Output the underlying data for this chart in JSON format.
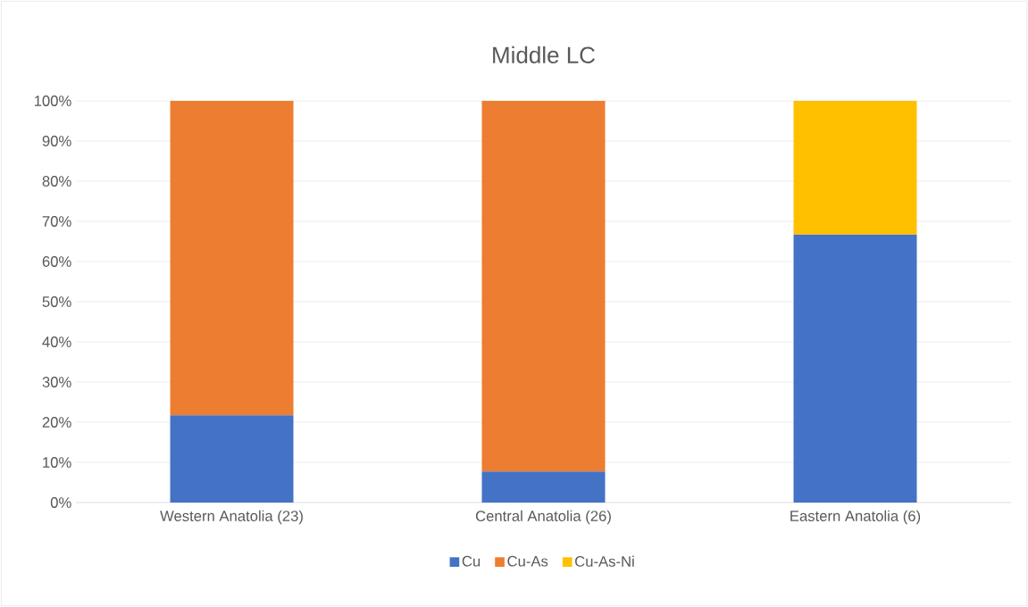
{
  "chart_data": {
    "type": "bar",
    "title": "Middle LC",
    "stacked": true,
    "categories": [
      "Western Anatolia (23)",
      "Central Anatolia (26)",
      "Eastern Anatolia (6)"
    ],
    "series": [
      {
        "name": "Cu",
        "color": "#4472c4",
        "values": [
          21.7,
          7.7,
          66.7
        ]
      },
      {
        "name": "Cu-As",
        "color": "#ed7d31",
        "values": [
          78.3,
          92.3,
          0
        ]
      },
      {
        "name": "Cu-As-Ni",
        "color": "#ffc000",
        "values": [
          0,
          0,
          33.3
        ]
      }
    ],
    "ylim": [
      0,
      100
    ],
    "yticks": [
      {
        "value": 0,
        "label": "0%"
      },
      {
        "value": 10,
        "label": "10%"
      },
      {
        "value": 20,
        "label": "20%"
      },
      {
        "value": 30,
        "label": "30%"
      },
      {
        "value": 40,
        "label": "40%"
      },
      {
        "value": 50,
        "label": "50%"
      },
      {
        "value": 60,
        "label": "60%"
      },
      {
        "value": 70,
        "label": "70%"
      },
      {
        "value": 80,
        "label": "80%"
      },
      {
        "value": 90,
        "label": "90%"
      },
      {
        "value": 100,
        "label": "100%"
      }
    ],
    "grid": "y",
    "legend": "bottom"
  }
}
